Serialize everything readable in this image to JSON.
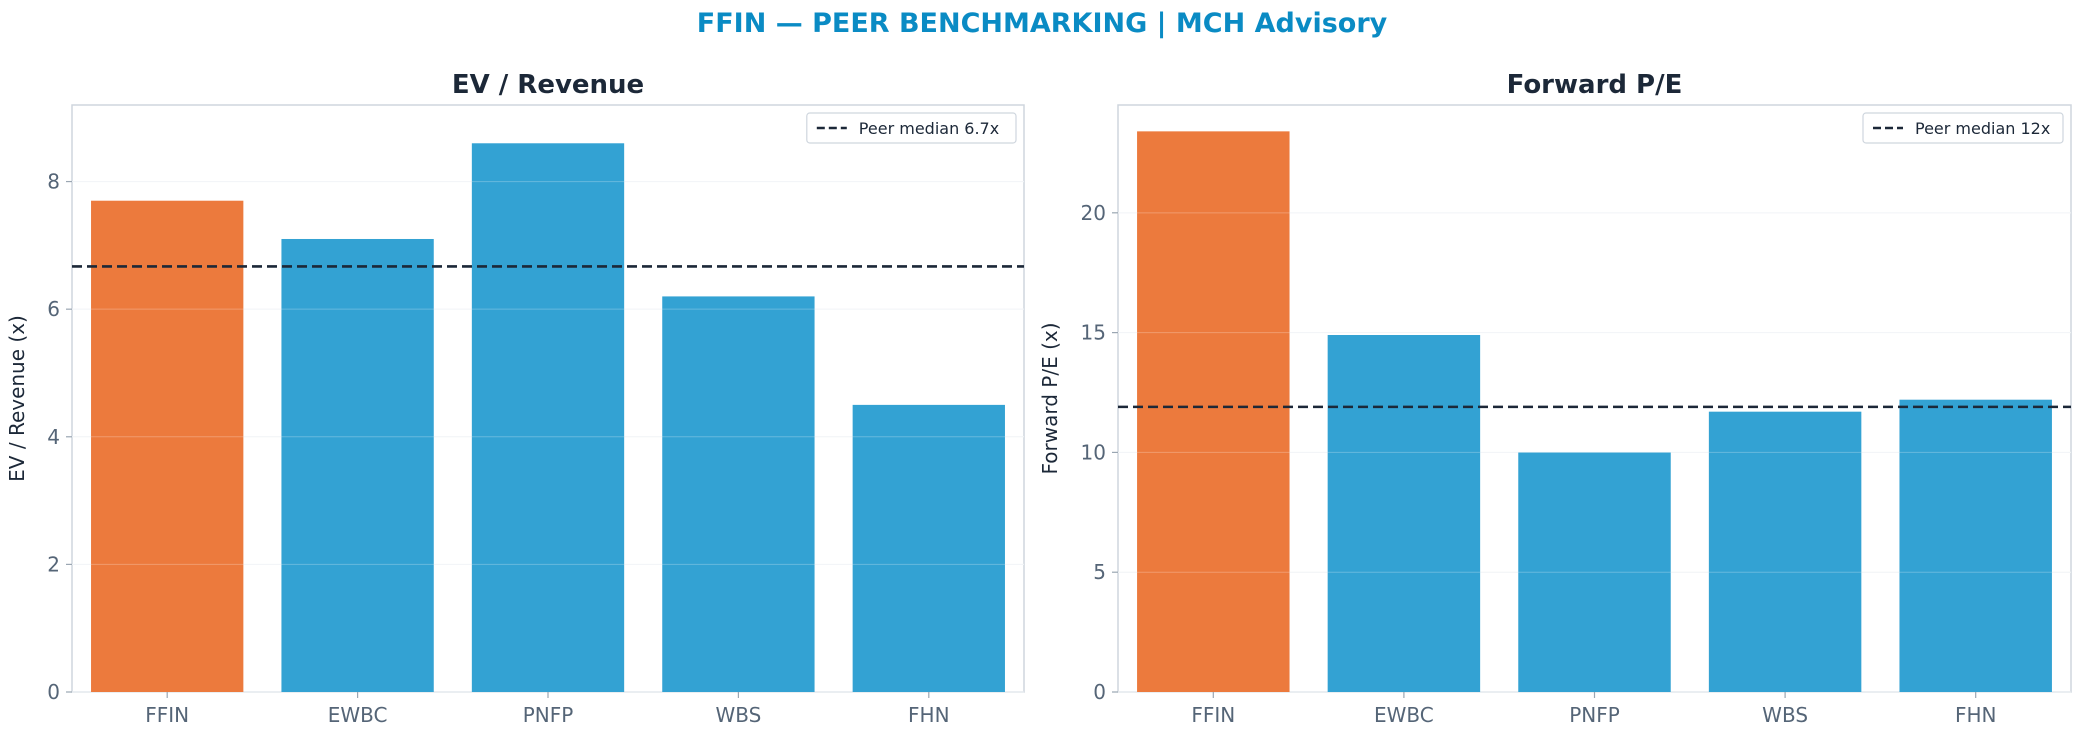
{
  "title": "FFIN — PEER BENCHMARKING | MCH Advisory",
  "colors": {
    "highlight": "#ec7a3d",
    "peer": "#33a2d3",
    "median": "#1c2838",
    "title": "#0a8bc4"
  },
  "chart_data": [
    {
      "type": "bar",
      "title": "EV / Revenue",
      "xlabel": "",
      "ylabel": "EV / Revenue (x)",
      "categories": [
        "FFIN",
        "EWBC",
        "PNFP",
        "WBS",
        "FHN"
      ],
      "values": [
        7.7,
        7.1,
        8.6,
        6.2,
        4.5
      ],
      "highlight_index": 0,
      "ylim": [
        0,
        9.2
      ],
      "yticks": [
        0,
        2,
        4,
        6,
        8
      ],
      "reference_line": {
        "value": 6.67,
        "label": "Peer median 6.7x",
        "style": "dashed"
      },
      "legend_position": "top-right",
      "grid": true
    },
    {
      "type": "bar",
      "title": "Forward P/E",
      "xlabel": "",
      "ylabel": "Forward P/E (x)",
      "categories": [
        "FFIN",
        "EWBC",
        "PNFP",
        "WBS",
        "FHN"
      ],
      "values": [
        23.4,
        14.9,
        10.0,
        11.7,
        12.2
      ],
      "highlight_index": 0,
      "ylim": [
        0,
        24.5
      ],
      "yticks": [
        0,
        5,
        10,
        15,
        20
      ],
      "reference_line": {
        "value": 11.9,
        "label": "Peer median 12x",
        "style": "dashed"
      },
      "legend_position": "top-right",
      "grid": true
    }
  ]
}
